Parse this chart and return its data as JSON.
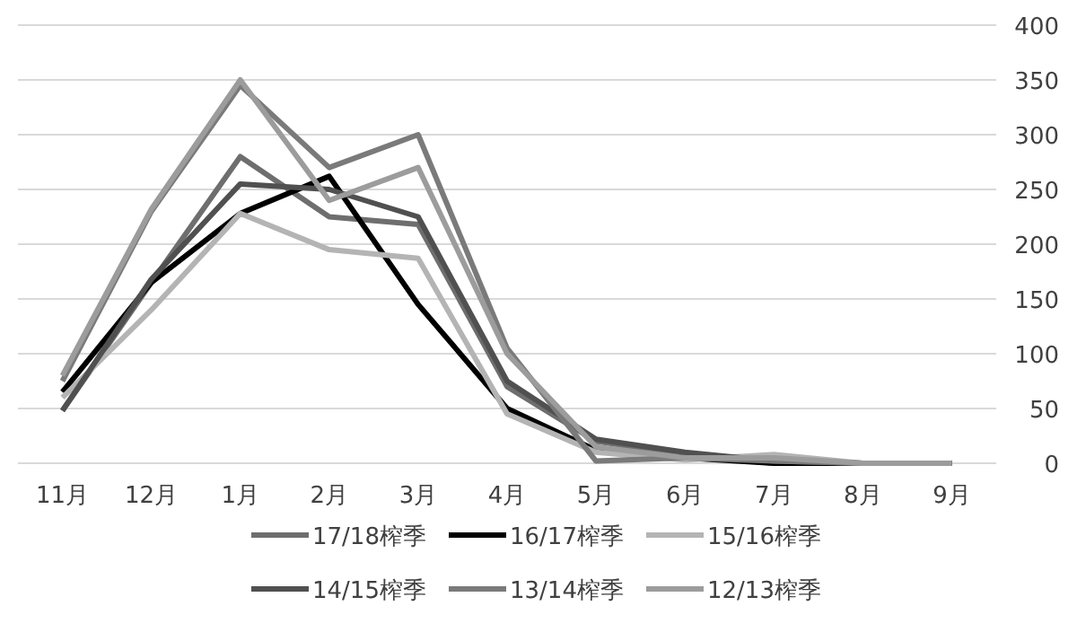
{
  "chart_data": {
    "type": "line",
    "categories": [
      "11月",
      "12月",
      "1月",
      "2月",
      "3月",
      "4月",
      "5月",
      "6月",
      "7月",
      "8月",
      "9月"
    ],
    "series": [
      {
        "name": "17/18榨季",
        "color": "#6e6e6e",
        "values": [
          48,
          165,
          280,
          225,
          218,
          70,
          20,
          8,
          0,
          0,
          0
        ]
      },
      {
        "name": "16/17榨季",
        "color": "#000000",
        "values": [
          65,
          165,
          228,
          262,
          145,
          50,
          12,
          5,
          0,
          0,
          0
        ]
      },
      {
        "name": "15/16榨季",
        "color": "#b4b4b4",
        "values": [
          60,
          140,
          228,
          195,
          187,
          45,
          10,
          3,
          8,
          0,
          0
        ]
      },
      {
        "name": "14/15榨季",
        "color": "#505050",
        "values": [
          48,
          168,
          255,
          250,
          225,
          75,
          22,
          10,
          2,
          0,
          0
        ]
      },
      {
        "name": "13/14榨季",
        "color": "#7a7a7a",
        "values": [
          75,
          230,
          345,
          270,
          300,
          105,
          2,
          5,
          2,
          0,
          0
        ]
      },
      {
        "name": "12/13榨季",
        "color": "#9c9c9c",
        "values": [
          80,
          232,
          350,
          240,
          270,
          100,
          15,
          5,
          5,
          0,
          0
        ]
      }
    ],
    "ylim": [
      0,
      400
    ],
    "yticks": [
      0,
      50,
      100,
      150,
      200,
      250,
      300,
      350,
      400
    ],
    "grid": "y",
    "legend": "bottom",
    "marker": "none",
    "line_style": "solid"
  }
}
